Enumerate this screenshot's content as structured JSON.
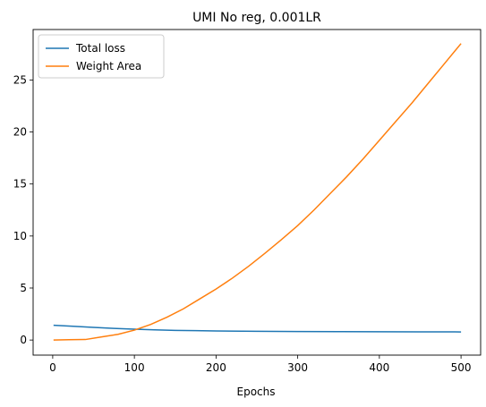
{
  "chart_data": {
    "type": "line",
    "title": "UMI No reg, 0.001LR",
    "xlabel": "Epochs",
    "ylabel": "",
    "xlim": [
      -24,
      524
    ],
    "ylim": [
      -1.45,
      29.85
    ],
    "xticks": [
      0,
      100,
      200,
      300,
      400,
      500
    ],
    "yticks": [
      0,
      5,
      10,
      15,
      20,
      25
    ],
    "grid": false,
    "legend": "top-left",
    "series": [
      {
        "name": "Total loss",
        "color": "#1f77b4",
        "x": [
          1,
          25,
          50,
          75,
          100,
          125,
          150,
          175,
          200,
          250,
          300,
          350,
          400,
          450,
          500
        ],
        "y": [
          1.42,
          1.32,
          1.22,
          1.12,
          1.04,
          0.98,
          0.93,
          0.9,
          0.87,
          0.84,
          0.82,
          0.81,
          0.8,
          0.79,
          0.78
        ]
      },
      {
        "name": "Weight Area",
        "color": "#ff7f0e",
        "x": [
          1,
          20,
          40,
          60,
          80,
          100,
          120,
          140,
          160,
          180,
          200,
          220,
          240,
          260,
          280,
          300,
          320,
          340,
          360,
          380,
          400,
          420,
          440,
          460,
          480,
          500
        ],
        "y": [
          0.0,
          0.03,
          0.05,
          0.3,
          0.55,
          0.95,
          1.5,
          2.2,
          3.0,
          3.95,
          4.9,
          5.95,
          7.1,
          8.35,
          9.65,
          11.0,
          12.5,
          14.1,
          15.7,
          17.4,
          19.2,
          21.0,
          22.8,
          24.7,
          26.6,
          28.5
        ]
      }
    ]
  }
}
